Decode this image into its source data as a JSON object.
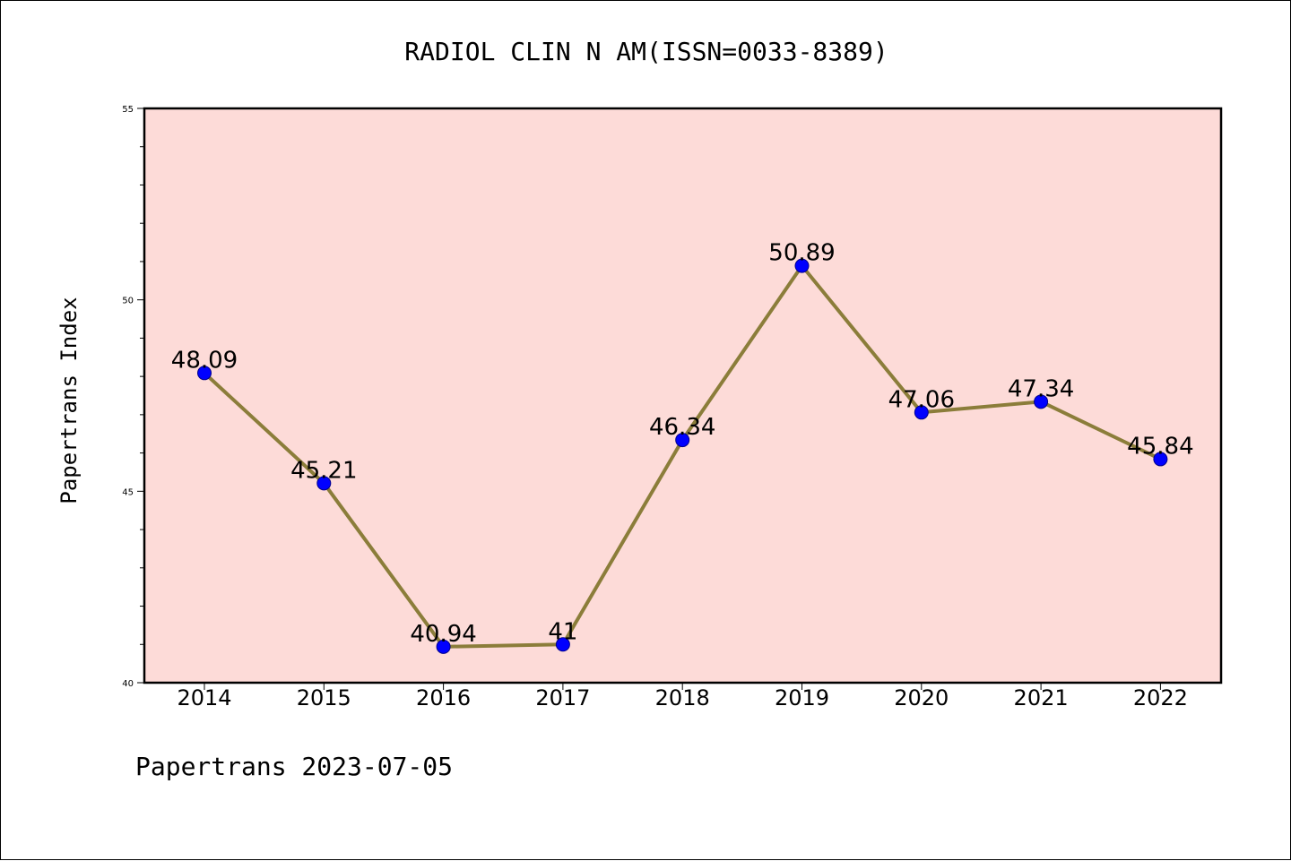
{
  "chart_data": {
    "type": "line",
    "title": "RADIOL CLIN N AM(ISSN=0033-8389)",
    "xlabel": "",
    "ylabel": "Papertrans Index",
    "categories": [
      "2014",
      "2015",
      "2016",
      "2017",
      "2018",
      "2019",
      "2020",
      "2021",
      "2022"
    ],
    "series": [
      {
        "values": [
          48.09,
          45.21,
          40.94,
          41,
          46.34,
          50.89,
          47.06,
          47.34,
          45.84
        ],
        "labels": [
          "48.09",
          "45.21",
          "40.94",
          "41",
          "46.34",
          "50.89",
          "47.06",
          "47.34",
          "45.84"
        ]
      }
    ],
    "ylim": [
      40,
      55
    ],
    "yticks": [
      "40",
      "45",
      "50",
      "55"
    ],
    "grid": false,
    "legend": "none",
    "footer": "Papertrans 2023-07-05",
    "colors": {
      "plot_background": "#fddbd8",
      "line": "#8b7d3a",
      "marker": "#0000ff",
      "marker_edge": "#00008b"
    }
  }
}
